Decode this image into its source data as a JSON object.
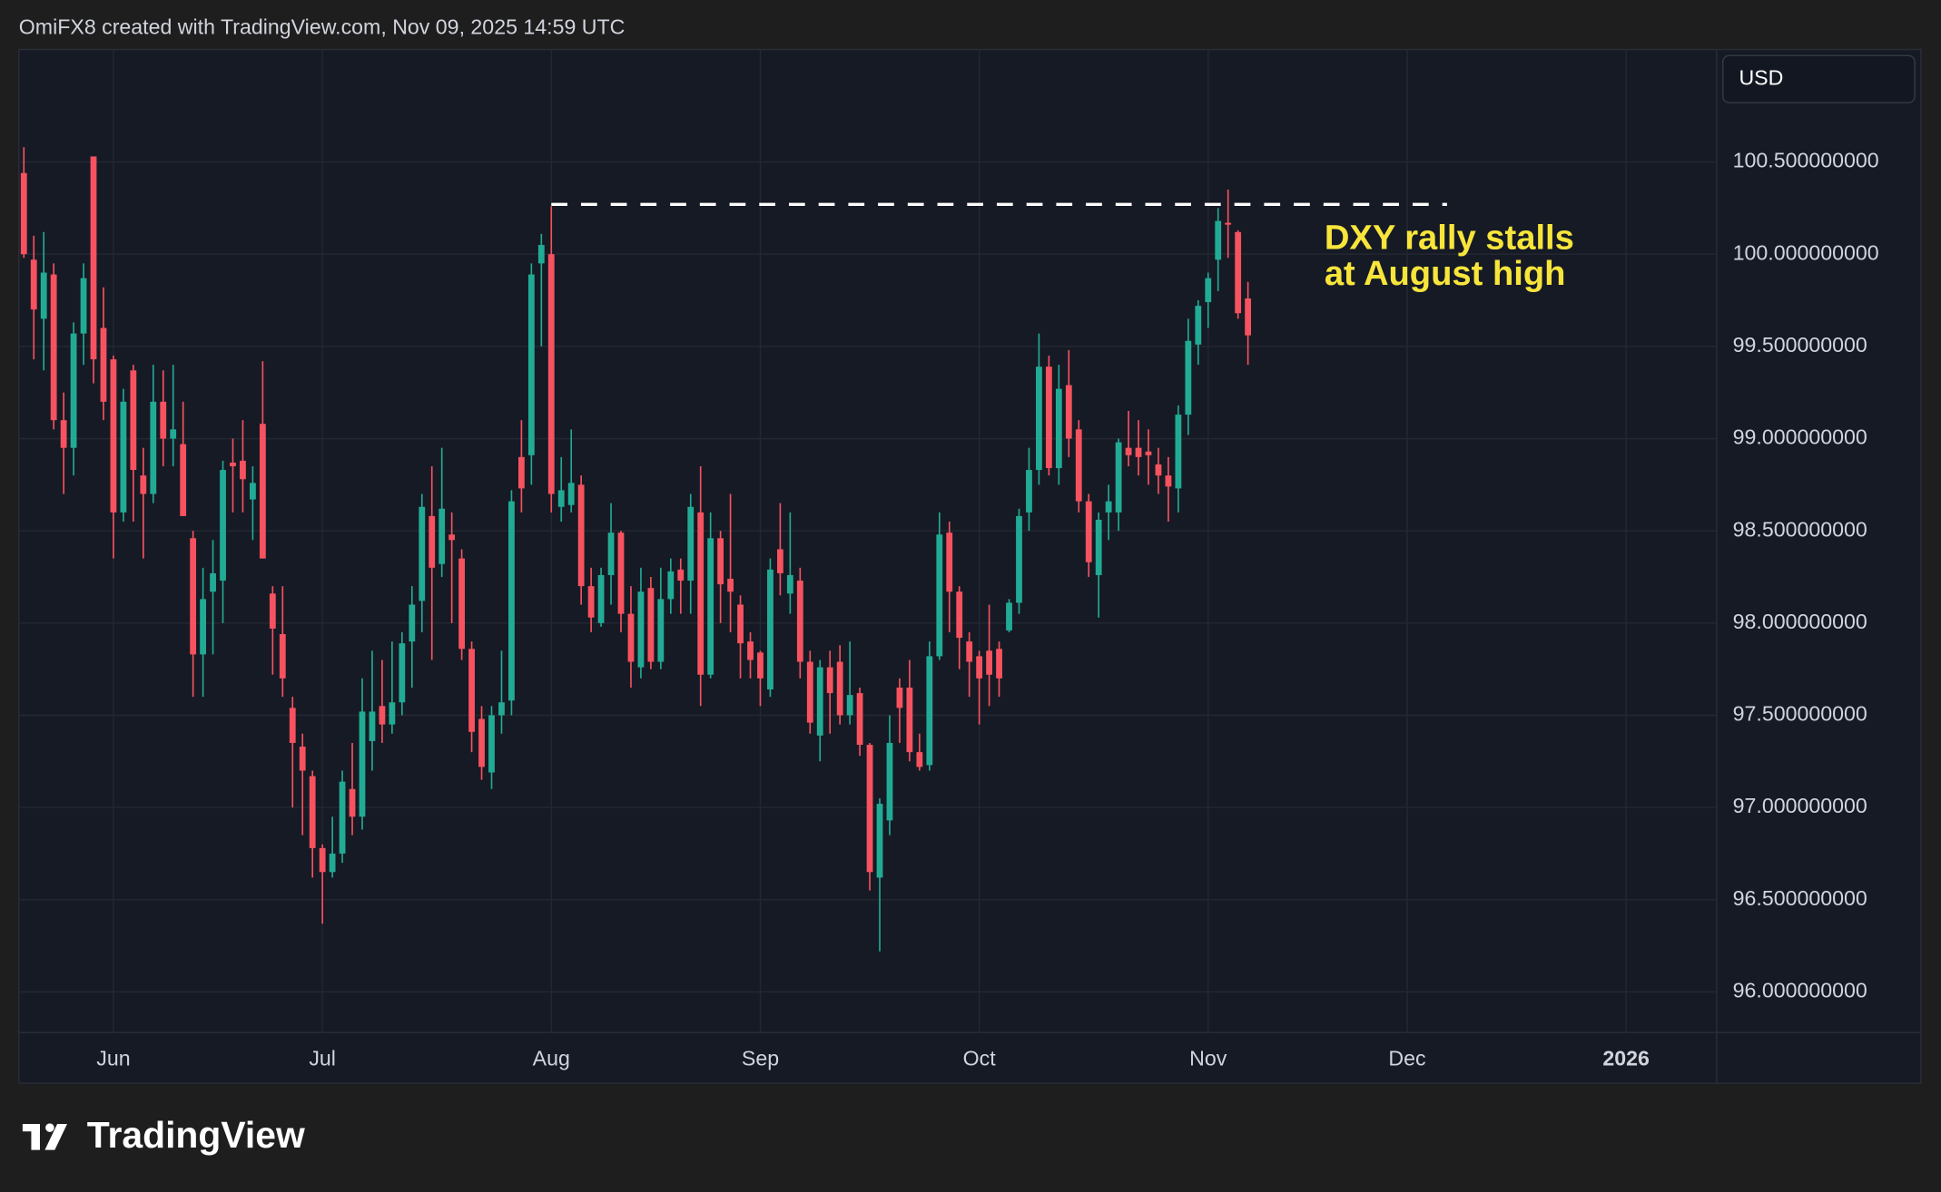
{
  "header": "OmiFX8 created with TradingView.com, Nov 09, 2025 14:59 UTC",
  "brand": "TradingView",
  "chart_data": {
    "type": "candlestick",
    "currency": "USD",
    "up_color": "#22ab94",
    "down_color": "#f7525f",
    "grid": true,
    "xlim": [
      -0.5,
      170.1
    ],
    "xticks": [
      {
        "value": 9,
        "label": "Jun"
      },
      {
        "value": 30,
        "label": "Jul"
      },
      {
        "value": 53,
        "label": "Aug"
      },
      {
        "value": 74,
        "label": "Sep"
      },
      {
        "value": 96,
        "label": "Oct"
      },
      {
        "value": 119,
        "label": "Nov"
      },
      {
        "value": 139,
        "label": "Dec"
      },
      {
        "value": 161,
        "label": "2026"
      }
    ],
    "ylim": [
      95.78,
      101.11
    ],
    "yticks": [
      {
        "value": 96.0,
        "label": "96.000000000"
      },
      {
        "value": 96.5,
        "label": "96.500000000"
      },
      {
        "value": 97.0,
        "label": "97.000000000"
      },
      {
        "value": 97.5,
        "label": "97.500000000"
      },
      {
        "value": 98.0,
        "label": "98.000000000"
      },
      {
        "value": 98.5,
        "label": "98.500000000"
      },
      {
        "value": 99.0,
        "label": "99.000000000"
      },
      {
        "value": 99.5,
        "label": "99.500000000"
      },
      {
        "value": 100.0,
        "label": "100.000000000"
      },
      {
        "value": 100.5,
        "label": "100.500000000"
      }
    ],
    "open": [
      100.44,
      99.97,
      99.65,
      99.89,
      99.1,
      98.95,
      99.57,
      100.53,
      99.6,
      99.43,
      98.6,
      99.37,
      98.8,
      98.7,
      99.2,
      99.0,
      98.97,
      98.46,
      97.83,
      98.17,
      98.23,
      98.87,
      98.88,
      98.67,
      99.08,
      98.16,
      97.94,
      97.54,
      97.33,
      97.17,
      96.78,
      96.65,
      96.75,
      97.1,
      96.95,
      97.36,
      97.55,
      97.45,
      97.57,
      97.9,
      98.12,
      98.58,
      98.32,
      98.48,
      98.35,
      97.86,
      97.48,
      97.19,
      97.5,
      97.58,
      98.9,
      98.91,
      99.95,
      100.0,
      98.63,
      98.64,
      98.75,
      98.2,
      98.0,
      98.26,
      98.49,
      98.05,
      97.76,
      98.19,
      97.79,
      98.13,
      98.29,
      98.23,
      98.6,
      97.72,
      98.46,
      98.24,
      98.1,
      97.9,
      97.84,
      97.64,
      98.4,
      98.16,
      98.23,
      97.79,
      97.39,
      97.76,
      97.79,
      97.5,
      97.62,
      97.34,
      96.62,
      96.93,
      97.65,
      97.65,
      97.3,
      97.23,
      97.82,
      98.49,
      98.17,
      97.9,
      97.82,
      97.85,
      97.86,
      97.96,
      98.11,
      98.6,
      98.83,
      99.39,
      98.84,
      99.29,
      99.05,
      98.66,
      98.26,
      98.6,
      98.6,
      98.95,
      98.95,
      98.93,
      98.86,
      98.8,
      98.73,
      99.13,
      99.51,
      99.74,
      99.97,
      100.17,
      100.12,
      99.76
    ],
    "high": [
      100.58,
      100.1,
      100.12,
      99.95,
      99.25,
      99.63,
      99.95,
      100.53,
      99.82,
      99.45,
      99.27,
      99.4,
      98.95,
      99.4,
      99.37,
      99.4,
      99.2,
      98.5,
      98.3,
      98.45,
      98.88,
      99.0,
      99.1,
      98.85,
      99.42,
      98.2,
      98.2,
      97.6,
      97.4,
      97.2,
      96.8,
      96.95,
      97.2,
      97.35,
      97.7,
      97.85,
      97.8,
      97.9,
      97.95,
      98.2,
      98.7,
      98.85,
      98.95,
      98.6,
      98.4,
      97.9,
      97.55,
      97.55,
      97.85,
      98.72,
      99.1,
      99.95,
      100.11,
      100.26,
      98.9,
      99.05,
      98.8,
      98.3,
      98.3,
      98.65,
      98.5,
      98.2,
      98.3,
      98.25,
      98.3,
      98.35,
      98.35,
      98.7,
      98.85,
      98.6,
      98.5,
      98.7,
      98.15,
      97.95,
      97.85,
      98.35,
      98.65,
      98.6,
      98.3,
      97.85,
      97.8,
      97.85,
      97.88,
      97.9,
      97.65,
      97.35,
      97.05,
      97.5,
      97.7,
      97.8,
      97.4,
      97.9,
      98.6,
      98.55,
      98.2,
      97.95,
      97.85,
      98.1,
      97.9,
      98.13,
      98.62,
      98.95,
      99.57,
      99.45,
      99.4,
      99.48,
      99.1,
      98.7,
      98.6,
      98.75,
      99.0,
      99.15,
      99.1,
      99.05,
      98.95,
      98.9,
      99.18,
      99.65,
      99.75,
      99.9,
      100.25,
      100.35,
      100.13,
      99.85
    ],
    "low": [
      99.98,
      99.43,
      99.37,
      99.05,
      98.7,
      98.8,
      99.4,
      99.3,
      99.1,
      98.35,
      98.55,
      98.55,
      98.35,
      98.65,
      98.85,
      98.85,
      98.58,
      97.6,
      97.6,
      97.83,
      98.0,
      98.6,
      98.6,
      98.45,
      98.35,
      97.72,
      97.6,
      97.0,
      96.85,
      96.62,
      96.37,
      96.62,
      96.7,
      96.85,
      96.88,
      97.2,
      97.35,
      97.4,
      97.5,
      97.65,
      97.95,
      97.8,
      98.25,
      98.0,
      97.8,
      97.3,
      97.15,
      97.1,
      97.4,
      97.5,
      98.6,
      98.75,
      99.5,
      98.6,
      98.55,
      98.6,
      98.1,
      97.95,
      97.98,
      98.1,
      97.95,
      97.65,
      97.7,
      97.75,
      97.75,
      98.05,
      98.05,
      98.05,
      97.55,
      97.7,
      98.0,
      97.95,
      97.7,
      97.7,
      97.55,
      97.6,
      98.15,
      98.05,
      97.7,
      97.4,
      97.25,
      97.4,
      97.45,
      97.45,
      97.28,
      96.55,
      96.22,
      96.85,
      97.35,
      97.25,
      97.2,
      97.2,
      97.8,
      97.95,
      97.75,
      97.6,
      97.45,
      97.55,
      97.6,
      97.95,
      98.05,
      98.5,
      98.75,
      98.8,
      98.75,
      98.9,
      98.6,
      98.25,
      98.03,
      98.45,
      98.5,
      98.85,
      98.8,
      98.75,
      98.7,
      98.55,
      98.6,
      99.02,
      99.4,
      99.6,
      99.8,
      99.98,
      99.65,
      99.4
    ],
    "close": [
      100.0,
      99.7,
      99.9,
      99.1,
      98.95,
      99.57,
      99.87,
      99.43,
      99.2,
      98.6,
      99.2,
      98.83,
      98.7,
      99.2,
      99.0,
      99.05,
      98.58,
      97.83,
      98.13,
      98.27,
      98.83,
      98.85,
      98.78,
      98.76,
      98.35,
      97.97,
      97.7,
      97.35,
      97.2,
      96.78,
      96.65,
      96.75,
      97.14,
      96.95,
      97.52,
      97.52,
      97.45,
      97.57,
      97.89,
      98.1,
      98.63,
      98.3,
      98.62,
      98.45,
      97.86,
      97.41,
      97.22,
      97.5,
      97.57,
      98.66,
      98.73,
      99.89,
      100.05,
      98.7,
      98.72,
      98.76,
      98.2,
      98.03,
      98.26,
      98.49,
      98.05,
      97.79,
      98.17,
      97.79,
      98.13,
      98.28,
      98.23,
      98.63,
      97.72,
      98.46,
      98.21,
      98.17,
      97.89,
      97.8,
      97.7,
      98.29,
      98.27,
      98.26,
      97.79,
      97.46,
      97.76,
      97.62,
      97.5,
      97.61,
      97.34,
      96.65,
      97.02,
      97.35,
      97.54,
      97.3,
      97.22,
      97.82,
      98.48,
      98.17,
      97.92,
      97.79,
      97.7,
      97.72,
      97.7,
      98.11,
      98.58,
      98.83,
      99.39,
      98.84,
      99.27,
      99.0,
      98.66,
      98.33,
      98.56,
      98.66,
      98.98,
      98.91,
      98.9,
      98.91,
      98.8,
      98.74,
      99.13,
      99.53,
      99.72,
      99.87,
      100.18,
      100.16,
      99.68,
      99.56
    ],
    "level_line": {
      "value": 100.27,
      "from": 53,
      "to": 143,
      "color": "#ffffff"
    },
    "annotation": {
      "lines": [
        "DXY rally stalls",
        "at August high"
      ],
      "color": "#f7e53b"
    }
  }
}
